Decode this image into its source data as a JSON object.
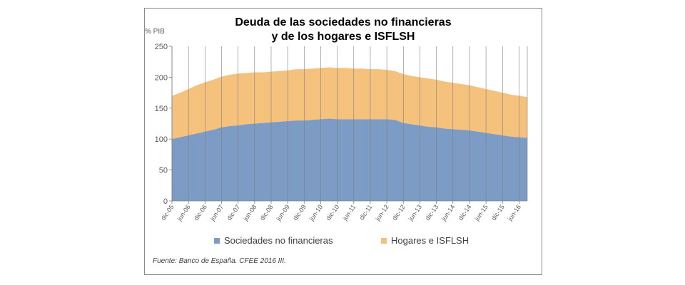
{
  "chart_data": {
    "type": "area",
    "stacked": true,
    "title_line1": "Deuda de las sociedades no financieras",
    "title_line2": "y  de los hogares e ISFLSH",
    "ylabel": "% PIB",
    "ylim": [
      0,
      250
    ],
    "yticks": [
      0,
      50,
      100,
      150,
      200,
      250
    ],
    "xtick_labels": [
      "dic-05",
      "jun-06",
      "dic-06",
      "jun-07",
      "dic-07",
      "jun-08",
      "dic-08",
      "jun-09",
      "dic-09",
      "jun-10",
      "dic-10",
      "jun-11",
      "dic-11",
      "jun-12",
      "dic-12",
      "jun-13",
      "dic-13",
      "jun-14",
      "dic-14",
      "jun-15",
      "dic-15",
      "jun-16"
    ],
    "x_quarters": [
      "dic-05",
      "mar-06",
      "jun-06",
      "sep-06",
      "dic-06",
      "mar-07",
      "jun-07",
      "sep-07",
      "dic-07",
      "mar-08",
      "jun-08",
      "sep-08",
      "dic-08",
      "mar-09",
      "jun-09",
      "sep-09",
      "dic-09",
      "mar-10",
      "jun-10",
      "sep-10",
      "dic-10",
      "mar-11",
      "jun-11",
      "sep-11",
      "dic-11",
      "mar-12",
      "jun-12",
      "sep-12",
      "dic-12",
      "mar-13",
      "jun-13",
      "sep-13",
      "dic-13",
      "mar-14",
      "jun-14",
      "sep-14",
      "dic-14",
      "mar-15",
      "jun-15",
      "sep-15",
      "dic-15",
      "mar-16",
      "jun-16",
      "sep-16"
    ],
    "grid_vertical": true,
    "legend_position": "bottom",
    "series": [
      {
        "name": "Sociedades no financieras",
        "color": "#7c9cc5",
        "values": [
          100,
          103,
          106,
          109,
          112,
          115,
          119,
          121,
          122,
          124,
          125,
          126,
          127,
          128,
          129,
          130,
          130,
          131,
          132,
          133,
          132,
          132,
          132,
          132,
          132,
          132,
          132,
          131,
          126,
          124,
          122,
          120,
          119,
          117,
          116,
          115,
          114,
          112,
          110,
          108,
          106,
          104,
          103,
          102
        ]
      },
      {
        "name": "Hogares e ISFLSH",
        "color": "#f5c27e",
        "values": [
          70,
          72,
          75,
          78,
          80,
          81,
          82,
          83,
          84,
          83,
          83,
          82,
          82,
          82,
          82,
          83,
          83,
          83,
          83,
          83,
          83,
          83,
          82,
          82,
          81,
          81,
          80,
          79,
          79,
          78,
          78,
          78,
          77,
          76,
          75,
          74,
          73,
          72,
          71,
          70,
          69,
          68,
          67,
          66
        ]
      }
    ],
    "source": "Fuente: Banco de España. CFEE 2016 III."
  }
}
